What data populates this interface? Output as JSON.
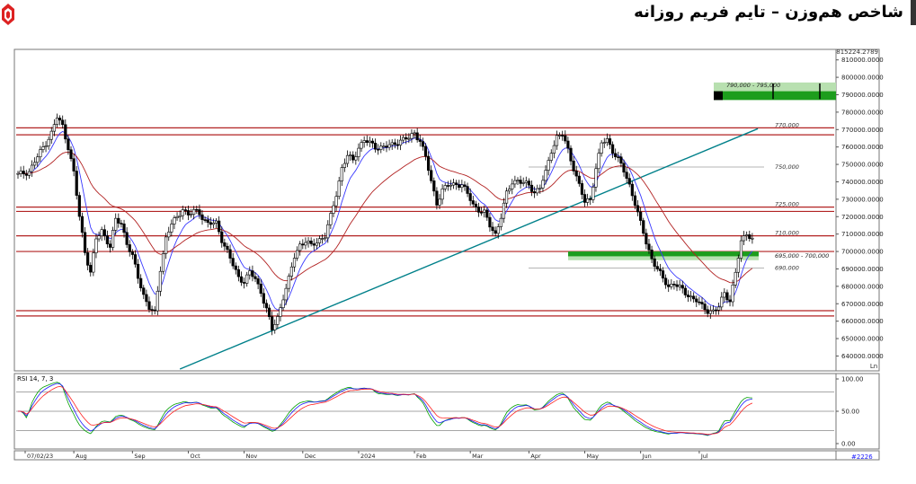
{
  "header": {
    "title": "شاخص هم‌وزن – تایم فریم روزانه"
  },
  "chart_data": {
    "type": "candlestick",
    "price_axis": {
      "ylim": [
        632500,
        815000
      ],
      "ticks": [
        "810000.0000",
        "800000.0000",
        "790000.0000",
        "780000.0000",
        "770000.0000",
        "760000.0000",
        "750000.0000",
        "740000.0000",
        "730000.0000",
        "720000.0000",
        "710000.0000",
        "700000.0000",
        "690000.0000",
        "680000.0000",
        "670000.0000",
        "660000.0000",
        "650000.0000",
        "640000.0000"
      ],
      "top_label": "815224.2789",
      "log_scale_indicator": "Ln"
    },
    "time_axis": {
      "labels": [
        "07/02/23",
        "Aug",
        "Sep",
        "Oct",
        "Nov",
        "Dec",
        "2024",
        "Feb",
        "Mar",
        "Apr",
        "May",
        "Jun",
        "Jul"
      ],
      "bar_count": 264
    },
    "horizontal_levels": [
      {
        "value": 771000,
        "color": "#b22222",
        "label": "770,000"
      },
      {
        "value": 767000,
        "color": "#b22222",
        "label": ""
      },
      {
        "value": 725500,
        "color": "#b22222",
        "label": "725,000"
      },
      {
        "value": 723000,
        "color": "#b22222",
        "label": ""
      },
      {
        "value": 709000,
        "color": "#b22222",
        "label": "710,000"
      },
      {
        "value": 700000,
        "color": "#b22222",
        "label": ""
      },
      {
        "value": 666000,
        "color": "#b22222",
        "label": ""
      },
      {
        "value": 663000,
        "color": "#b22222",
        "label": ""
      }
    ],
    "gray_levels": [
      {
        "value": 748500,
        "label": "750,000"
      },
      {
        "value": 690500,
        "label": "690,000"
      }
    ],
    "zones": [
      {
        "label": "790,000 - 795,000",
        "top": 796000,
        "bottom": 788000,
        "color": "#1d9d1d"
      },
      {
        "label": "695,000 - 700,000",
        "top": 700000,
        "bottom": 695000,
        "color": "#1d9d1d"
      }
    ],
    "trendline": {
      "from": {
        "bar": 58,
        "value": 632500
      },
      "to": {
        "bar": 265,
        "value": 770500
      },
      "color": "#00808a"
    },
    "moving_averages": [
      {
        "name": "fast",
        "color": "#3a3aff"
      },
      {
        "name": "slow",
        "color": "#b22222"
      }
    ],
    "close_path": [
      [
        0,
        744000
      ],
      [
        4,
        746000
      ],
      [
        8,
        757000
      ],
      [
        12,
        768000
      ],
      [
        14,
        777000
      ],
      [
        16,
        772000
      ],
      [
        18,
        760000
      ],
      [
        20,
        745000
      ],
      [
        22,
        720000
      ],
      [
        24,
        700000
      ],
      [
        26,
        688000
      ],
      [
        28,
        707000
      ],
      [
        30,
        712000
      ],
      [
        33,
        703000
      ],
      [
        35,
        718000
      ],
      [
        37,
        716000
      ],
      [
        39,
        705000
      ],
      [
        41,
        697000
      ],
      [
        43,
        685000
      ],
      [
        45,
        675000
      ],
      [
        47,
        668000
      ],
      [
        49,
        664000
      ],
      [
        51,
        690000
      ],
      [
        53,
        708000
      ],
      [
        55,
        716000
      ],
      [
        57,
        719000
      ],
      [
        59,
        725000
      ],
      [
        61,
        721000
      ],
      [
        63,
        723000
      ],
      [
        65,
        722000
      ],
      [
        68,
        716000
      ],
      [
        71,
        716000
      ],
      [
        73,
        707000
      ],
      [
        75,
        700000
      ],
      [
        77,
        692000
      ],
      [
        79,
        685000
      ],
      [
        81,
        683000
      ],
      [
        83,
        688000
      ],
      [
        85,
        684000
      ],
      [
        87,
        677000
      ],
      [
        89,
        667000
      ],
      [
        91,
        655000
      ],
      [
        93,
        662000
      ],
      [
        95,
        674000
      ],
      [
        97,
        684000
      ],
      [
        99,
        697000
      ],
      [
        101,
        704000
      ],
      [
        103,
        706000
      ],
      [
        105,
        703000
      ],
      [
        108,
        707000
      ],
      [
        110,
        709000
      ],
      [
        112,
        720000
      ],
      [
        114,
        733000
      ],
      [
        116,
        748000
      ],
      [
        118,
        755000
      ],
      [
        120,
        752000
      ],
      [
        122,
        760000
      ],
      [
        124,
        764000
      ],
      [
        126,
        762000
      ],
      [
        128,
        760000
      ],
      [
        131,
        760000
      ],
      [
        134,
        761000
      ],
      [
        137,
        764000
      ],
      [
        140,
        765000
      ],
      [
        142,
        768000
      ],
      [
        144,
        764000
      ],
      [
        146,
        754000
      ],
      [
        148,
        740000
      ],
      [
        150,
        728000
      ],
      [
        152,
        735000
      ],
      [
        154,
        738000
      ],
      [
        157,
        739000
      ],
      [
        159,
        738000
      ],
      [
        161,
        733000
      ],
      [
        163,
        727000
      ],
      [
        165,
        724000
      ],
      [
        167,
        722000
      ],
      [
        169,
        715000
      ],
      [
        171,
        710000
      ],
      [
        173,
        720000
      ],
      [
        175,
        733000
      ],
      [
        177,
        740000
      ],
      [
        179,
        741000
      ],
      [
        181,
        739000
      ],
      [
        183,
        738000
      ],
      [
        185,
        734000
      ],
      [
        187,
        737000
      ],
      [
        189,
        745000
      ],
      [
        191,
        758000
      ],
      [
        193,
        766000
      ],
      [
        195,
        767000
      ],
      [
        197,
        758000
      ],
      [
        199,
        748000
      ],
      [
        201,
        738000
      ],
      [
        203,
        728000
      ],
      [
        205,
        730000
      ],
      [
        207,
        748000
      ],
      [
        209,
        762000
      ],
      [
        211,
        764000
      ],
      [
        213,
        758000
      ],
      [
        215,
        753000
      ],
      [
        217,
        746000
      ],
      [
        219,
        738000
      ],
      [
        221,
        728000
      ],
      [
        223,
        716000
      ],
      [
        225,
        705000
      ],
      [
        227,
        696000
      ],
      [
        229,
        690000
      ],
      [
        231,
        684000
      ],
      [
        233,
        680000
      ],
      [
        235,
        682000
      ],
      [
        237,
        679000
      ],
      [
        239,
        676000
      ],
      [
        241,
        674000
      ],
      [
        243,
        672000
      ],
      [
        245,
        668000
      ],
      [
        247,
        666000
      ],
      [
        249,
        666000
      ],
      [
        251,
        668000
      ],
      [
        253,
        676000
      ],
      [
        255,
        672000
      ],
      [
        257,
        688000
      ],
      [
        259,
        705000
      ],
      [
        261,
        711000
      ],
      [
        263,
        707000
      ],
      [
        264,
        704000
      ]
    ],
    "rsi": {
      "label": "RSI 14, 7, 3",
      "ylim": [
        0,
        100
      ],
      "ticks": [
        "100.00",
        "50.00",
        "0.00"
      ],
      "guide_levels": [
        80,
        50,
        20
      ],
      "series_colors": [
        "#00a000",
        "#1a1aff",
        "#ff2020"
      ]
    },
    "footer_value": "#2226"
  }
}
